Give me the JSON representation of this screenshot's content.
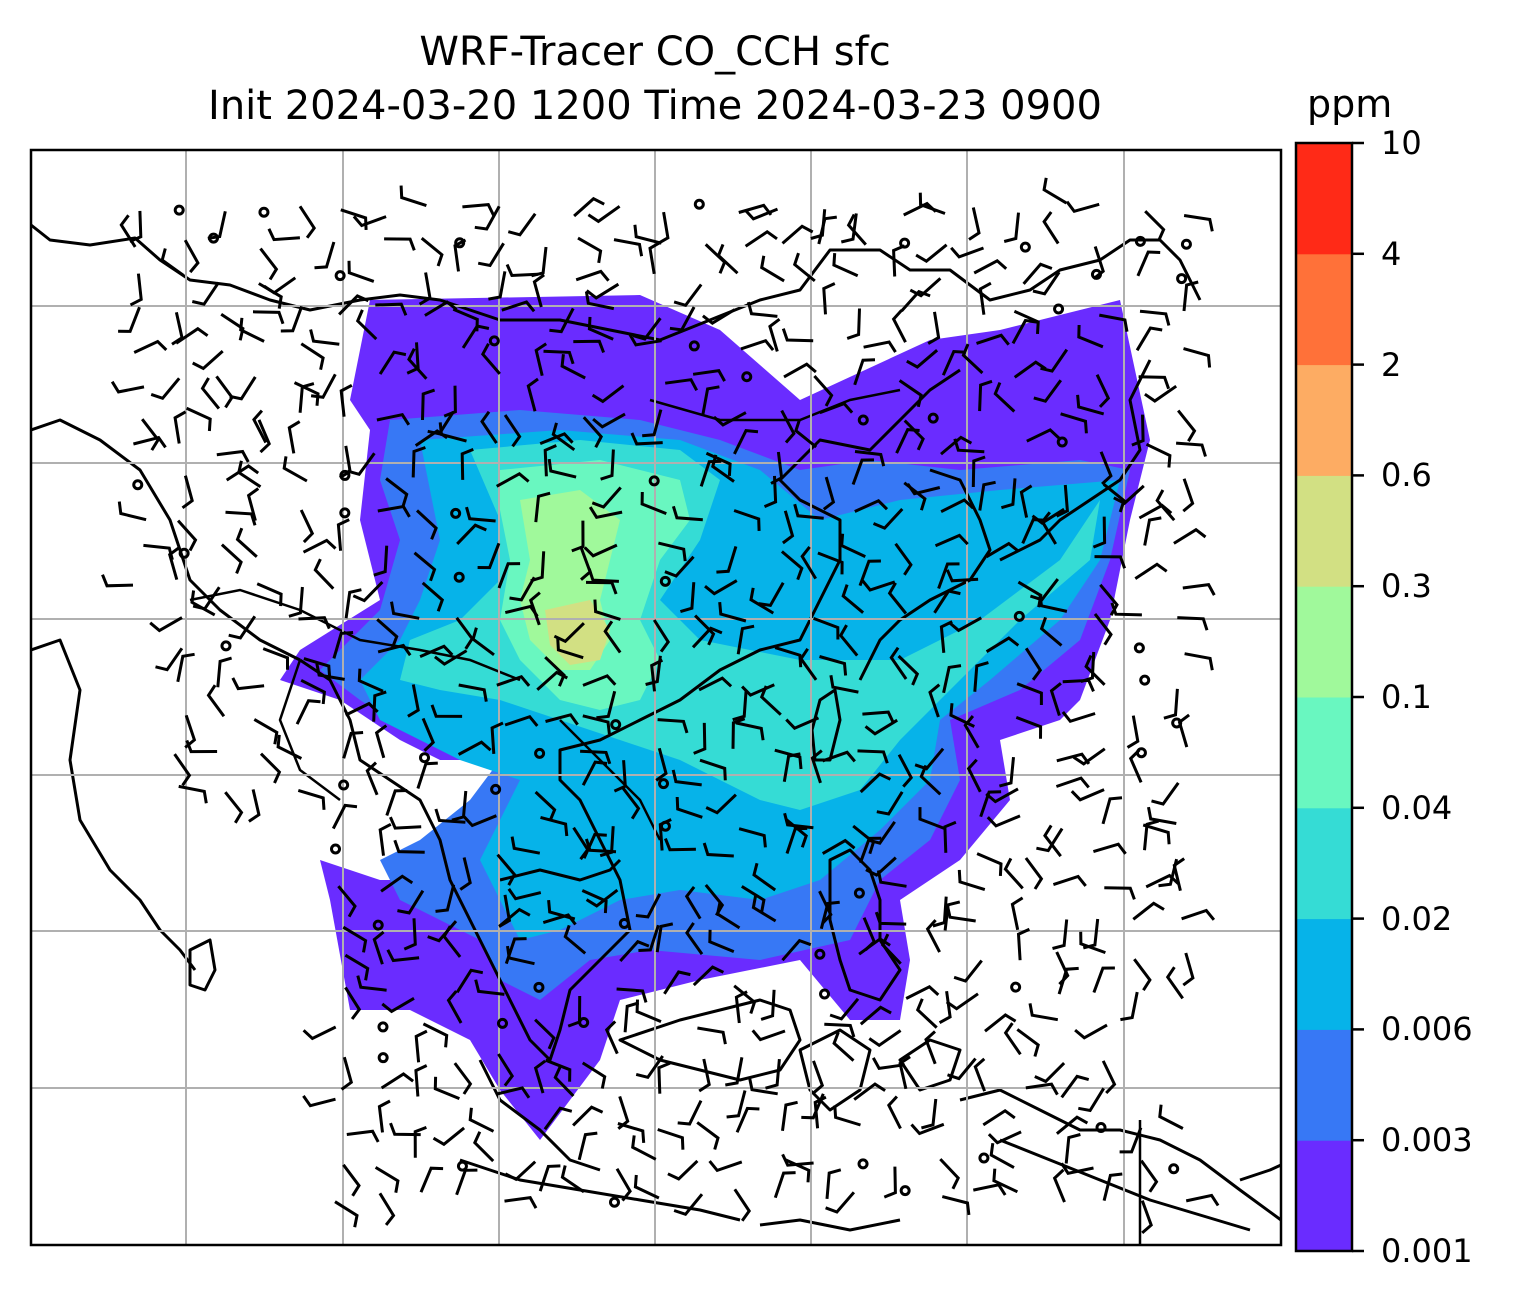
{
  "title": {
    "line1": "WRF-Tracer CO_CCH sfc",
    "line2": "Init 2024-03-20 1200 Time 2024-03-23 0900"
  },
  "colorbar": {
    "unit": "ppm",
    "ticks": [
      "0.001",
      "0.003",
      "0.006",
      "0.02",
      "0.04",
      "0.1",
      "0.3",
      "0.6",
      "2",
      "4",
      "10"
    ],
    "colors": [
      "#6a2cff",
      "#3778f5",
      "#06b3e9",
      "#35dcd5",
      "#69f7c0",
      "#a0f99b",
      "#d2e083",
      "#fdac63",
      "#ff7139",
      "#ff2a17"
    ]
  },
  "map": {
    "field": "CO_CCH",
    "level": "sfc",
    "gridlines": true,
    "features": [
      "coastlines",
      "country-borders",
      "wind-barbs",
      "tracer-contours"
    ]
  }
}
